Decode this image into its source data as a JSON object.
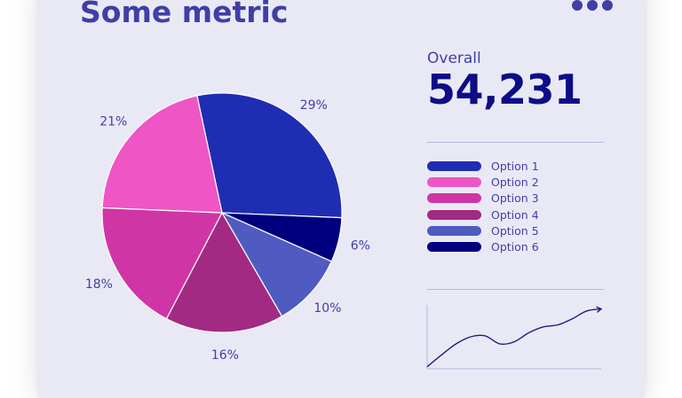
{
  "header": {
    "title": "Some metric",
    "menu_icon": "more-horizontal-icon"
  },
  "summary": {
    "label": "Overall",
    "value": "54,231"
  },
  "colors": {
    "accent": "#3f3fa6",
    "value_text": "#0d0d87",
    "card_bg": "#e9e9f6",
    "trend_line": "#1c1f7a"
  },
  "chart_data": [
    {
      "type": "pie",
      "title": "",
      "legend_position": "right",
      "slices": [
        {
          "label": "Option 1",
          "value": 29,
          "display": "29%",
          "color": "#1f2db3"
        },
        {
          "label": "Option 6",
          "value": 6,
          "display": "6%",
          "color": "#00007f"
        },
        {
          "label": "Option 5",
          "value": 10,
          "display": "10%",
          "color": "#4f5bc1"
        },
        {
          "label": "Option 4",
          "value": 16,
          "display": "16%",
          "color": "#a32a82"
        },
        {
          "label": "Option 3",
          "value": 18,
          "display": "18%",
          "color": "#d035a5"
        },
        {
          "label": "Option 2",
          "value": 21,
          "display": "21%",
          "color": "#ee55c5"
        }
      ]
    },
    {
      "type": "line",
      "title": "",
      "xlabel": "",
      "ylabel": "",
      "grid": false,
      "x": [
        0,
        1,
        2,
        3,
        4,
        5,
        6,
        7,
        8,
        9,
        10,
        11,
        12
      ],
      "y": [
        2,
        14,
        25,
        32,
        33,
        25,
        27,
        36,
        42,
        44,
        50,
        58,
        60
      ]
    }
  ],
  "legend": {
    "items": [
      {
        "label": "Option 1",
        "color": "#1f2db3"
      },
      {
        "label": "Option 2",
        "color": "#ee55c5"
      },
      {
        "label": "Option 3",
        "color": "#d035a5"
      },
      {
        "label": "Option 4",
        "color": "#a32a82"
      },
      {
        "label": "Option 5",
        "color": "#4f5bc1"
      },
      {
        "label": "Option 6",
        "color": "#00007f"
      }
    ]
  }
}
